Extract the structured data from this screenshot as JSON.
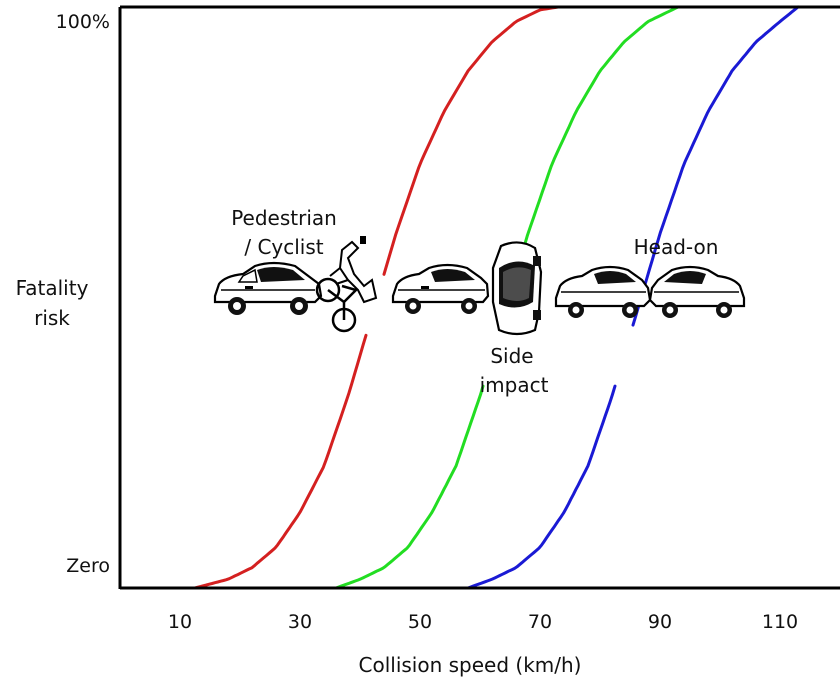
{
  "chart_data": {
    "type": "line",
    "title": "",
    "xlabel": "Collision speed (km/h)",
    "ylabel": [
      "Fatality",
      "risk"
    ],
    "xlim": [
      0,
      120
    ],
    "ylim": [
      0,
      100
    ],
    "x_ticks": [
      10,
      30,
      50,
      70,
      90,
      110
    ],
    "y_ticks": [
      {
        "value": 0,
        "label": "Zero"
      },
      {
        "value": 100,
        "label": "100%"
      }
    ],
    "grid": false,
    "series": [
      {
        "name": "Pedestrian / Cyclist",
        "color": "#d42020",
        "x": [
          12.5,
          18,
          22,
          26,
          30,
          34,
          38,
          42,
          46,
          50,
          54,
          58,
          62,
          66,
          70,
          73
        ],
        "y": [
          0,
          1.5,
          3.5,
          7,
          13,
          21,
          33,
          47,
          61,
          73,
          82,
          89,
          94,
          97.5,
          99.5,
          100
        ],
        "gaps": [
          [
            41,
            44
          ]
        ]
      },
      {
        "name": "Side impact",
        "color": "#22dd22",
        "x": [
          36,
          40,
          44,
          48,
          52,
          56,
          60,
          64,
          68,
          72,
          76,
          80,
          84,
          88,
          93
        ],
        "y": [
          0,
          1.5,
          3.5,
          7,
          13,
          21,
          33,
          47,
          61,
          73,
          82,
          89,
          94,
          97.5,
          100
        ],
        "gaps": [
          [
            60.5,
            63.5
          ]
        ]
      },
      {
        "name": "Head-on",
        "color": "#1a1ad4",
        "x": [
          58,
          62,
          66,
          70,
          74,
          78,
          82,
          86,
          90,
          94,
          98,
          102,
          106,
          110,
          113
        ],
        "y": [
          0,
          1.5,
          3.5,
          7,
          13,
          21,
          33,
          47,
          61,
          73,
          82,
          89,
          94,
          97.5,
          100
        ],
        "gaps": [
          [
            82.5,
            85.5
          ]
        ]
      }
    ],
    "annotations": [
      {
        "lines": [
          "Pedestrian",
          "/ Cyclist"
        ],
        "series": "Pedestrian / Cyclist"
      },
      {
        "lines": [
          "Side",
          "impact"
        ],
        "series": "Side impact"
      },
      {
        "lines": [
          "Head-on"
        ],
        "series": "Head-on"
      }
    ]
  }
}
